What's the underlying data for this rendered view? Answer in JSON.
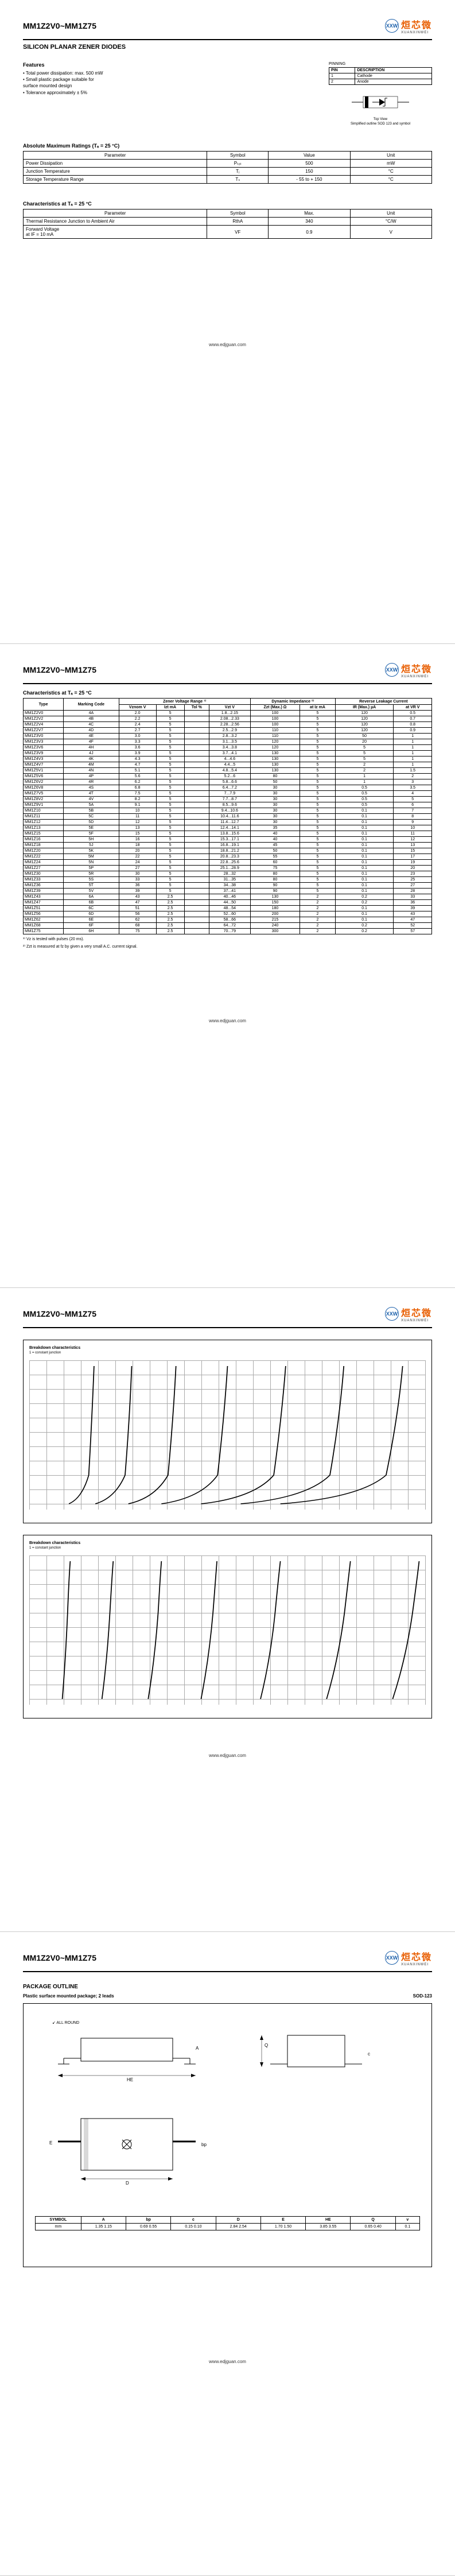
{
  "part_range": "MM1Z2V0~MM1Z75",
  "logo_text": "烜芯微",
  "logo_sub": "XUANXINWEI",
  "subtitle": "SILICON PLANAR ZENER DIODES",
  "website": "www.edjguan.com",
  "features": {
    "title": "Features",
    "items": [
      "• Total power dissipation: max. 500 mW",
      "• Small plastic package suitable for",
      "  surface mounted design",
      "• Tolerance approximately ± 5%"
    ]
  },
  "pinning": {
    "label": "PINNING",
    "headers": [
      "PIN",
      "DESCRIPTION"
    ],
    "rows": [
      [
        "1",
        "Cathode"
      ],
      [
        "2",
        "Anode"
      ]
    ],
    "caption1": "Top View",
    "caption2": "Simplified outline SOD 123 and symbol"
  },
  "abs_max": {
    "title": "Absolute Maximum Ratings (Tₐ = 25 °C)",
    "headers": [
      "Parameter",
      "Symbol",
      "Value",
      "Unit"
    ],
    "rows": [
      [
        "Power Dissipation",
        "Pₜₒₜ",
        "500",
        "mW"
      ],
      [
        "Junction Temperature",
        "Tⱼ",
        "150",
        "°C"
      ],
      [
        "Storage Temperature Range",
        "Tₛ",
        "- 55 to + 150",
        "°C"
      ]
    ]
  },
  "char1": {
    "title": "Characteristics at Tₐ = 25 °C",
    "headers": [
      "Parameter",
      "Symbol",
      "Max.",
      "Unit"
    ],
    "rows": [
      [
        "Thermal Resistance Junction to Ambient Air",
        "RthA",
        "340",
        "°C/W"
      ],
      [
        "Forward Voltage\nat IF = 10 mA",
        "VF",
        "0.9",
        "V"
      ]
    ]
  },
  "char2": {
    "title": "Characteristics at Tₐ = 25 °C",
    "group_headers": [
      "Type",
      "Marking Code",
      "Zener Voltage Range ¹⁾",
      "Dynamic Impedance ²⁾",
      "Reverse Leakage Current"
    ],
    "sub_headers": [
      "",
      "",
      "Vznom V",
      "Izt mA",
      "Tol %",
      "Vzt V",
      "Zzt (Max.) Ω",
      "at Iz mA",
      "IR (Max.) µA",
      "at VR V"
    ],
    "rows": [
      [
        "MM1Z2V0",
        "4A",
        "2.0",
        "5",
        "",
        "1.8...2.15",
        "100",
        "5",
        "120",
        "0.5"
      ],
      [
        "MM1Z2V2",
        "4B",
        "2.2",
        "5",
        "",
        "2.08...2.33",
        "100",
        "5",
        "120",
        "0.7"
      ],
      [
        "MM1Z2V4",
        "4C",
        "2.4",
        "5",
        "",
        "2.28...2.56",
        "100",
        "5",
        "120",
        "0.8"
      ],
      [
        "MM1Z2V7",
        "4D",
        "2.7",
        "5",
        "",
        "2.5...2.9",
        "110",
        "5",
        "120",
        "0.9"
      ],
      [
        "MM1Z3V0",
        "4E",
        "3.0",
        "5",
        "",
        "2.8...3.2",
        "110",
        "5",
        "50",
        "1"
      ],
      [
        "MM1Z3V3",
        "4F",
        "3.3",
        "5",
        "",
        "3.1...3.5",
        "120",
        "5",
        "20",
        "1"
      ],
      [
        "MM1Z3V6",
        "4H",
        "3.6",
        "5",
        "",
        "3.4...3.8",
        "120",
        "5",
        "5",
        "1"
      ],
      [
        "MM1Z3V9",
        "4J",
        "3.9",
        "5",
        "",
        "3.7...4.1",
        "130",
        "5",
        "5",
        "1"
      ],
      [
        "MM1Z4V3",
        "4K",
        "4.3",
        "5",
        "",
        "4...4.6",
        "130",
        "5",
        "5",
        "1"
      ],
      [
        "MM1Z4V7",
        "4M",
        "4.7",
        "5",
        "",
        "4.4...5",
        "130",
        "5",
        "2",
        "1"
      ],
      [
        "MM1Z5V1",
        "4N",
        "5.1",
        "5",
        "",
        "4.8...5.4",
        "130",
        "5",
        "2",
        "1.5"
      ],
      [
        "MM1Z5V6",
        "4P",
        "5.6",
        "5",
        "",
        "5.2...6",
        "80",
        "5",
        "1",
        "2"
      ],
      [
        "MM1Z6V2",
        "4R",
        "6.2",
        "5",
        "",
        "5.8...6.6",
        "50",
        "5",
        "1",
        "3"
      ],
      [
        "MM1Z6V8",
        "4S",
        "6.8",
        "5",
        "",
        "6.4...7.2",
        "30",
        "5",
        "0.5",
        "3.5"
      ],
      [
        "MM1Z7V5",
        "4T",
        "7.5",
        "5",
        "",
        "7...7.9",
        "30",
        "5",
        "0.5",
        "4"
      ],
      [
        "MM1Z8V2",
        "4V",
        "8.2",
        "5",
        "",
        "7.7...8.7",
        "30",
        "5",
        "0.5",
        "5"
      ],
      [
        "MM1Z9V1",
        "5A",
        "9.1",
        "5",
        "",
        "8.5...9.6",
        "30",
        "5",
        "0.5",
        "6"
      ],
      [
        "MM1Z10",
        "5B",
        "10",
        "5",
        "",
        "9.4...10.6",
        "30",
        "5",
        "0.1",
        "7"
      ],
      [
        "MM1Z11",
        "5C",
        "11",
        "5",
        "",
        "10.4...11.6",
        "30",
        "5",
        "0.1",
        "8"
      ],
      [
        "MM1Z12",
        "5D",
        "12",
        "5",
        "",
        "11.4...12.7",
        "30",
        "5",
        "0.1",
        "9"
      ],
      [
        "MM1Z13",
        "5E",
        "13",
        "5",
        "",
        "12.4...14.1",
        "35",
        "5",
        "0.1",
        "10"
      ],
      [
        "MM1Z15",
        "5F",
        "15",
        "5",
        "",
        "13.8...15.6",
        "40",
        "5",
        "0.1",
        "11"
      ],
      [
        "MM1Z16",
        "5H",
        "16",
        "5",
        "",
        "15.3...17.1",
        "40",
        "5",
        "0.1",
        "12"
      ],
      [
        "MM1Z18",
        "5J",
        "18",
        "5",
        "",
        "16.8...19.1",
        "45",
        "5",
        "0.1",
        "13"
      ],
      [
        "MM1Z20",
        "5K",
        "20",
        "5",
        "",
        "18.8...21.2",
        "50",
        "5",
        "0.1",
        "15"
      ],
      [
        "MM1Z22",
        "5M",
        "22",
        "5",
        "",
        "20.8...23.3",
        "55",
        "5",
        "0.1",
        "17"
      ],
      [
        "MM1Z24",
        "5N",
        "24",
        "5",
        "",
        "22.8...25.6",
        "60",
        "5",
        "0.1",
        "19"
      ],
      [
        "MM1Z27",
        "5P",
        "27",
        "5",
        "",
        "25.1...28.9",
        "75",
        "5",
        "0.1",
        "20"
      ],
      [
        "MM1Z30",
        "5R",
        "30",
        "5",
        "",
        "28...32",
        "80",
        "5",
        "0.1",
        "23"
      ],
      [
        "MM1Z33",
        "5S",
        "33",
        "5",
        "",
        "31...35",
        "80",
        "5",
        "0.1",
        "25"
      ],
      [
        "MM1Z36",
        "5T",
        "36",
        "5",
        "",
        "34...38",
        "90",
        "5",
        "0.1",
        "27"
      ],
      [
        "MM1Z39",
        "5V",
        "39",
        "5",
        "",
        "37...41",
        "90",
        "5",
        "0.1",
        "28"
      ],
      [
        "MM1Z43",
        "6A",
        "43",
        "2.5",
        "",
        "40...46",
        "130",
        "2",
        "0.2",
        "33"
      ],
      [
        "MM1Z47",
        "6B",
        "47",
        "2.5",
        "",
        "44...50",
        "150",
        "2",
        "0.2",
        "36"
      ],
      [
        "MM1Z51",
        "6C",
        "51",
        "2.5",
        "",
        "48...54",
        "180",
        "2",
        "0.1",
        "39"
      ],
      [
        "MM1Z56",
        "6D",
        "56",
        "2.5",
        "",
        "52...60",
        "200",
        "2",
        "0.1",
        "43"
      ],
      [
        "MM1Z62",
        "6E",
        "62",
        "2.5",
        "",
        "58...66",
        "215",
        "2",
        "0.1",
        "47"
      ],
      [
        "MM1Z68",
        "6F",
        "68",
        "2.5",
        "",
        "64...72",
        "240",
        "2",
        "0.2",
        "52"
      ],
      [
        "MM1Z75",
        "6H",
        "75",
        "2.5",
        "",
        "70...79",
        "300",
        "2",
        "0.2",
        "57"
      ]
    ],
    "notes": [
      "¹⁾ Vz is tested with pulses (20 ms).",
      "²⁾ Zzt is measured at fz by given a very small A.C. current signal."
    ]
  },
  "chart1": {
    "title": "Breakdown characteristics",
    "sub": "1 = constant junction"
  },
  "chart2": {
    "title": "Breakdown characteristics",
    "sub": "1 = constant junction"
  },
  "pkg": {
    "title": "PACKAGE OUTLINE",
    "subtitle": "Plastic surface mounted package; 2 leads",
    "code": "SOD-123",
    "dim_headers": [
      "SYMBOL",
      "A",
      "bp",
      "c",
      "D",
      "E",
      "HE",
      "Q",
      "v"
    ],
    "dim_rows": [
      [
        "mm",
        "1.35 1.15",
        "0.69 0.55",
        "0.15 0.10",
        "2.84 2.54",
        "1.70 1.50",
        "3.85 3.55",
        "0.65 0.40",
        "0.1"
      ]
    ]
  }
}
